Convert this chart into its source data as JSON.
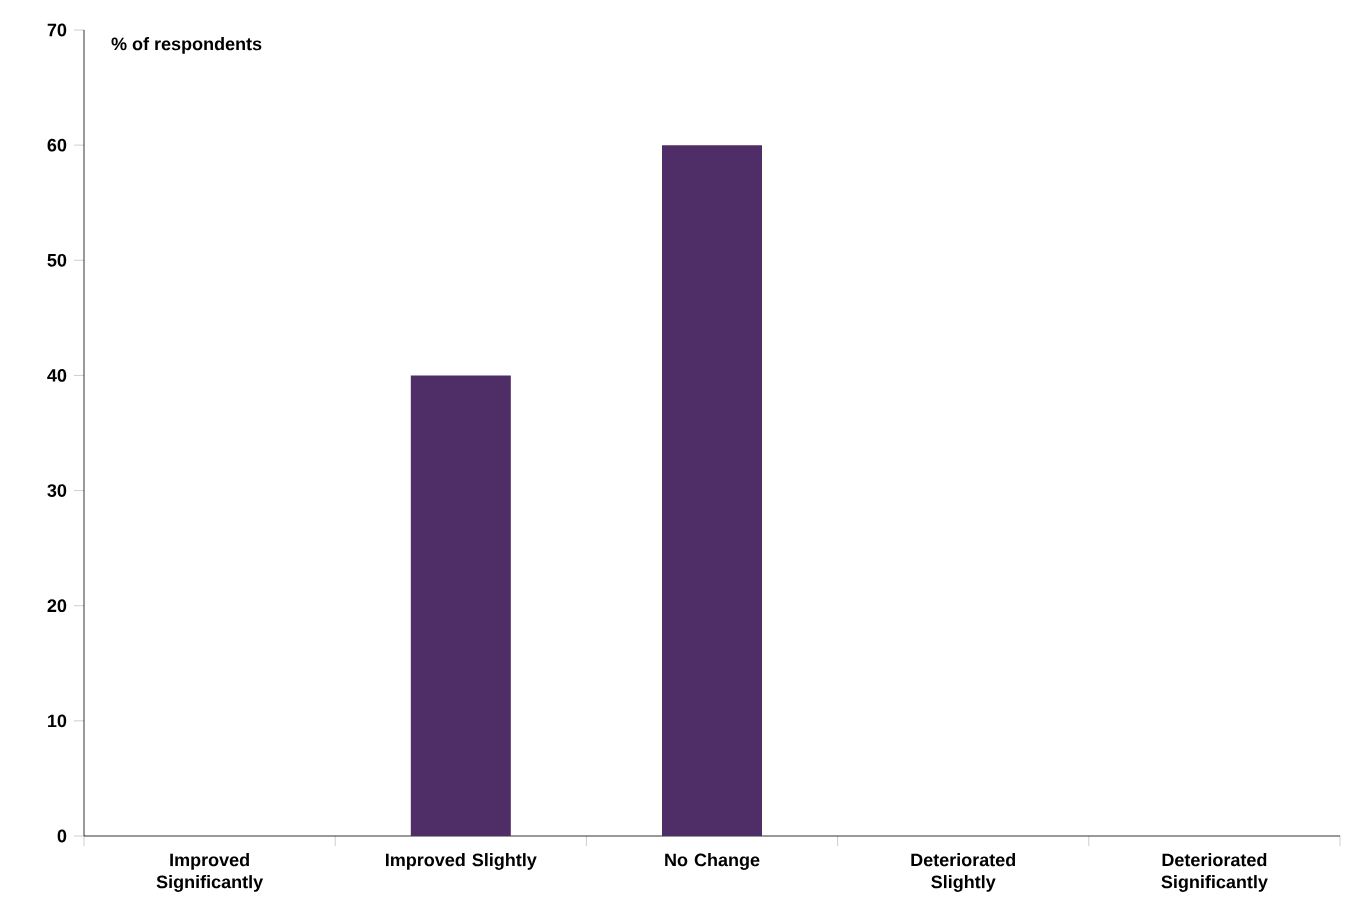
{
  "chart_data": {
    "type": "bar",
    "ylabel": "% of respondents",
    "categories": [
      "Improved Significantly",
      "Improved Slightly",
      "No Change",
      "Deteriorated Slightly",
      "Deteriorated Significantly"
    ],
    "values": [
      0,
      40,
      60,
      0,
      0
    ],
    "color": "#4f2d66",
    "ylim": [
      0,
      70
    ],
    "yticks": [
      0,
      10,
      20,
      30,
      40,
      50,
      60,
      70
    ],
    "grid": false
  }
}
